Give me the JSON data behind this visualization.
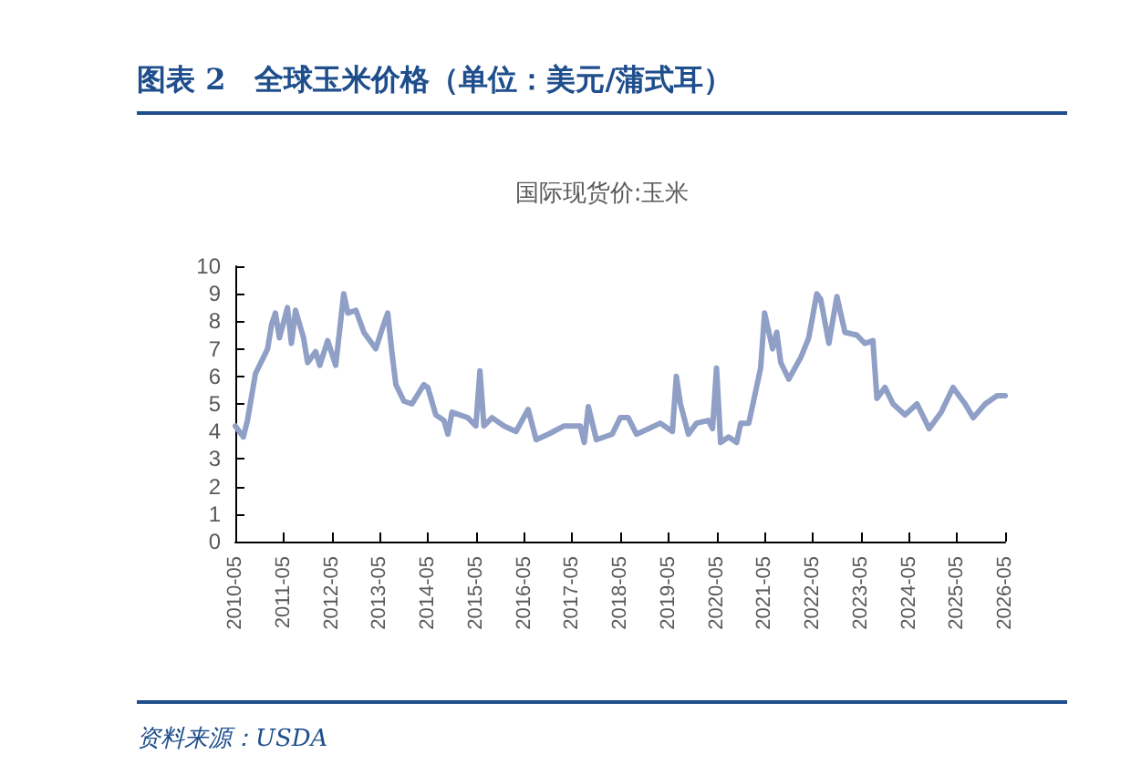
{
  "chart_data": {
    "type": "line",
    "title": "图表 2　全球玉米价格（单位：美元/蒲式耳）",
    "subtitle": "国际现货价:玉米",
    "annotations": [
      "资料来源：USDA"
    ],
    "x": [
      "2010-05",
      "2010-07",
      "2010-08",
      "2010-10",
      "2010-11",
      "2011-01",
      "2011-02",
      "2011-03",
      "2011-04",
      "2011-06",
      "2011-07",
      "2011-08",
      "2011-10",
      "2011-11",
      "2012-01",
      "2012-02",
      "2012-04",
      "2012-06",
      "2012-08",
      "2012-09",
      "2012-11",
      "2013-01",
      "2013-04",
      "2013-06",
      "2013-07",
      "2013-08",
      "2013-09",
      "2013-11",
      "2014-01",
      "2014-04",
      "2014-05",
      "2014-07",
      "2014-09",
      "2014-10",
      "2014-11",
      "2015-03",
      "2015-05",
      "2015-06",
      "2015-07",
      "2015-09",
      "2015-12",
      "2016-03",
      "2016-06",
      "2016-08",
      "2016-11",
      "2017-03",
      "2017-07",
      "2017-08",
      "2017-09",
      "2017-11",
      "2018-03",
      "2018-05",
      "2018-07",
      "2018-09",
      "2018-12",
      "2019-03",
      "2019-06",
      "2019-07",
      "2019-08",
      "2019-10",
      "2019-12",
      "2020-03",
      "2020-04",
      "2020-05",
      "2020-06",
      "2020-08",
      "2020-10",
      "2020-11",
      "2021-01",
      "2021-04",
      "2021-05",
      "2021-07",
      "2021-08",
      "2021-09",
      "2021-11",
      "2022-02",
      "2022-04",
      "2022-06",
      "2022-07",
      "2022-09",
      "2022-11",
      "2023-01",
      "2023-04",
      "2023-06",
      "2023-08",
      "2023-09",
      "2023-11",
      "2024-01",
      "2024-04",
      "2024-07",
      "2024-09",
      "2024-10",
      "2025-01",
      "2025-04",
      "2025-05",
      "2025-07",
      "2025-09",
      "2025-12",
      "2026-03",
      "2026-05"
    ],
    "values": [
      4.2,
      3.8,
      4.4,
      6.1,
      6.4,
      7.0,
      7.9,
      8.3,
      7.4,
      8.5,
      7.2,
      8.4,
      7.4,
      6.5,
      6.9,
      6.4,
      7.3,
      6.4,
      9.0,
      8.3,
      8.4,
      7.6,
      7.0,
      7.9,
      8.3,
      6.9,
      5.7,
      5.1,
      5.0,
      5.7,
      5.6,
      4.6,
      4.4,
      3.9,
      4.7,
      4.5,
      4.2,
      6.2,
      4.2,
      4.5,
      4.2,
      4.0,
      4.8,
      3.7,
      3.9,
      4.2,
      4.2,
      3.6,
      4.9,
      3.7,
      3.9,
      4.5,
      4.5,
      3.9,
      4.1,
      4.3,
      4.0,
      6.0,
      5.0,
      3.9,
      4.3,
      4.4,
      4.1,
      6.3,
      3.6,
      3.8,
      3.6,
      4.3,
      4.3,
      6.3,
      8.3,
      7.0,
      7.6,
      6.5,
      5.9,
      6.7,
      7.4,
      9.0,
      8.8,
      7.2,
      8.9,
      7.6,
      7.5,
      7.2,
      7.3,
      5.2,
      5.6,
      5.0,
      4.6,
      5.0,
      4.4,
      4.1,
      4.7,
      5.6,
      5.4,
      5.0,
      4.5,
      5.0,
      5.3,
      5.3
    ],
    "color": "#8f9fc6",
    "marker": "none",
    "line_style": "solid",
    "ylim": [
      0,
      10
    ],
    "yticks": [
      0,
      1,
      2,
      3,
      4,
      5,
      6,
      7,
      8,
      9,
      10
    ],
    "xlim": [
      "2010-05",
      "2026-05"
    ],
    "xticks": [
      "2010-05",
      "2011-05",
      "2012-05",
      "2013-05",
      "2014-05",
      "2015-05",
      "2016-05",
      "2017-05",
      "2018-05",
      "2019-05",
      "2020-05",
      "2021-05",
      "2022-05",
      "2023-05",
      "2024-05",
      "2025-05",
      "2026-05"
    ]
  }
}
